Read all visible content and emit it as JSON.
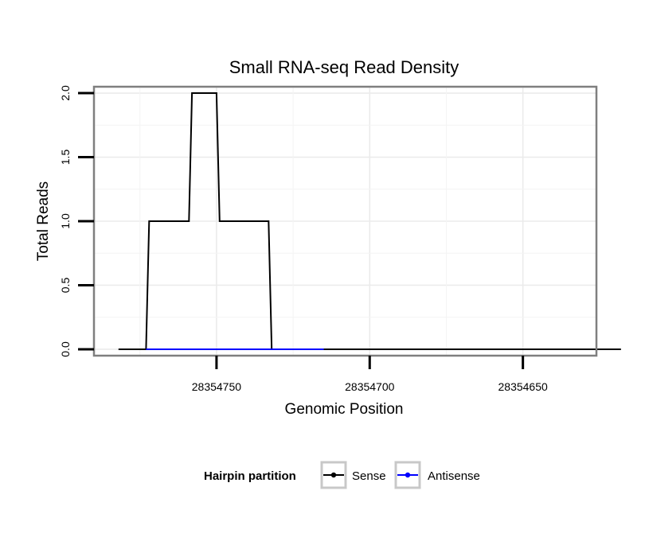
{
  "chart_data": {
    "type": "line",
    "title": "Small RNA-seq Read Density",
    "xlabel": "Genomic Position",
    "ylabel": "Total Reads",
    "x_reversed": true,
    "xlim": [
      28354790,
      28354626
    ],
    "ylim": [
      -0.05,
      2.05
    ],
    "x_ticks": [
      28354750,
      28354700,
      28354650
    ],
    "x_tick_labels": [
      "28354750",
      "28354700",
      "28354650"
    ],
    "y_ticks": [
      0.0,
      0.5,
      1.0,
      1.5,
      2.0
    ],
    "y_tick_labels": [
      "0.0",
      "0.5",
      "1.0",
      "1.5",
      "2.0"
    ],
    "grid": true,
    "legend": {
      "title": "Hairpin partition",
      "position": "bottom",
      "entries": [
        {
          "label": "Sense",
          "color": "#000000"
        },
        {
          "label": "Antisense",
          "color": "#0000ff"
        }
      ]
    },
    "series": [
      {
        "name": "Sense",
        "color": "#000000",
        "x": [
          28354782,
          28354773,
          28354772,
          28354759,
          28354758,
          28354750,
          28354749,
          28354733,
          28354732,
          28354716,
          28354715,
          28354618
        ],
        "y": [
          0,
          0,
          1,
          1,
          2,
          2,
          1,
          1,
          0,
          0,
          0,
          0
        ]
      },
      {
        "name": "Antisense",
        "color": "#0000ff",
        "x": [
          28354773,
          28354715
        ],
        "y": [
          0,
          0
        ]
      }
    ]
  }
}
